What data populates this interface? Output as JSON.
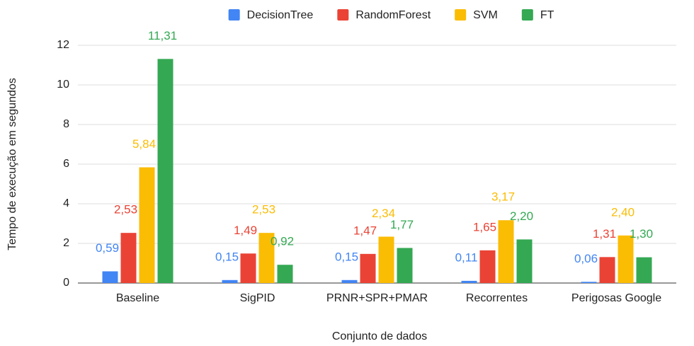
{
  "chart_data": {
    "type": "bar",
    "x_label": "Conjunto de dados",
    "y_label": "Tempo de execução em segundos",
    "categories": [
      "Baseline",
      "SigPID",
      "PRNR+SPR+PMAR",
      "Recorrentes",
      "Perigosas Google"
    ],
    "series": [
      {
        "name": "DecisionTree",
        "color": "#4285f4",
        "values": [
          0.59,
          0.15,
          0.15,
          0.11,
          0.06
        ],
        "value_labels": [
          "0,59",
          "0,15",
          "0,15",
          "0,11",
          "0,06"
        ]
      },
      {
        "name": "RandomForest",
        "color": "#ea4335",
        "values": [
          2.53,
          1.49,
          1.47,
          1.65,
          1.31
        ],
        "value_labels": [
          "2,53",
          "1,49",
          "1,47",
          "1,65",
          "1,31"
        ]
      },
      {
        "name": "SVM",
        "color": "#fbbc04",
        "values": [
          5.84,
          2.53,
          2.34,
          3.17,
          2.4
        ],
        "value_labels": [
          "5,84",
          "2,53",
          "2,34",
          "3,17",
          "2,40"
        ]
      },
      {
        "name": "FT",
        "color": "#34a853",
        "values": [
          11.31,
          0.92,
          1.77,
          2.2,
          1.3
        ],
        "value_labels": [
          "11,31",
          "0,92",
          "1,77",
          "2,20",
          "1,30"
        ]
      }
    ],
    "ylim": [
      0,
      12
    ],
    "yticks": [
      0,
      2,
      4,
      6,
      8,
      10,
      12
    ],
    "grid": true,
    "legend": "top"
  }
}
